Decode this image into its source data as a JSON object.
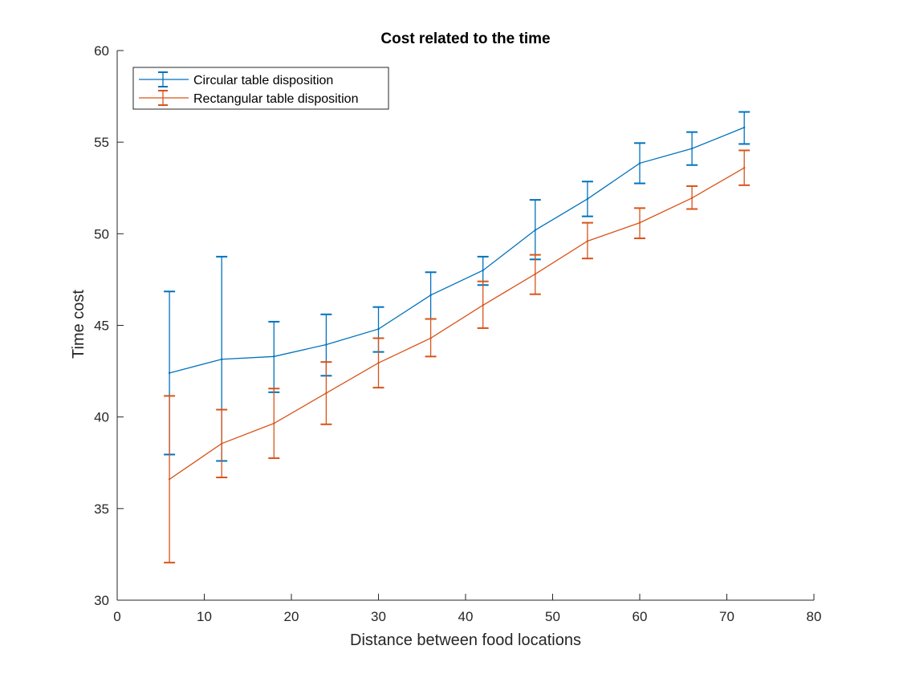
{
  "chart_data": {
    "type": "line",
    "title": "Cost related to the time",
    "xlabel": "Distance between food locations",
    "ylabel": "Time cost",
    "xlim": [
      0,
      80
    ],
    "ylim": [
      30,
      60
    ],
    "xticks": [
      0,
      10,
      20,
      30,
      40,
      50,
      60,
      70,
      80
    ],
    "yticks": [
      30,
      35,
      40,
      45,
      50,
      55,
      60
    ],
    "grid": false,
    "legend_position": "top-left",
    "error_bars": true,
    "x": [
      6,
      12,
      18,
      24,
      30,
      36,
      42,
      48,
      54,
      60,
      66,
      72
    ],
    "series": [
      {
        "name": "Circular table disposition",
        "color": "#0072BD",
        "values": [
          42.4,
          43.15,
          43.3,
          43.95,
          44.8,
          46.65,
          48.0,
          50.2,
          51.9,
          53.85,
          54.65,
          55.8
        ],
        "lower": [
          37.95,
          37.6,
          41.35,
          42.25,
          43.55,
          45.35,
          47.2,
          48.6,
          50.95,
          52.75,
          53.75,
          54.9
        ],
        "upper": [
          46.85,
          48.75,
          45.2,
          45.6,
          46.0,
          47.9,
          48.75,
          51.85,
          52.85,
          54.95,
          55.55,
          56.65
        ]
      },
      {
        "name": "Rectangular table disposition",
        "color": "#D95319",
        "values": [
          36.6,
          38.55,
          39.65,
          41.3,
          42.95,
          44.3,
          46.1,
          47.8,
          49.6,
          50.6,
          51.95,
          53.6
        ],
        "lower": [
          32.05,
          36.7,
          37.75,
          39.6,
          41.6,
          43.3,
          44.85,
          46.7,
          48.65,
          49.75,
          51.35,
          52.65
        ],
        "upper": [
          41.15,
          40.4,
          41.55,
          43.0,
          44.3,
          45.35,
          47.4,
          48.85,
          50.6,
          51.4,
          52.6,
          54.55
        ]
      }
    ]
  }
}
